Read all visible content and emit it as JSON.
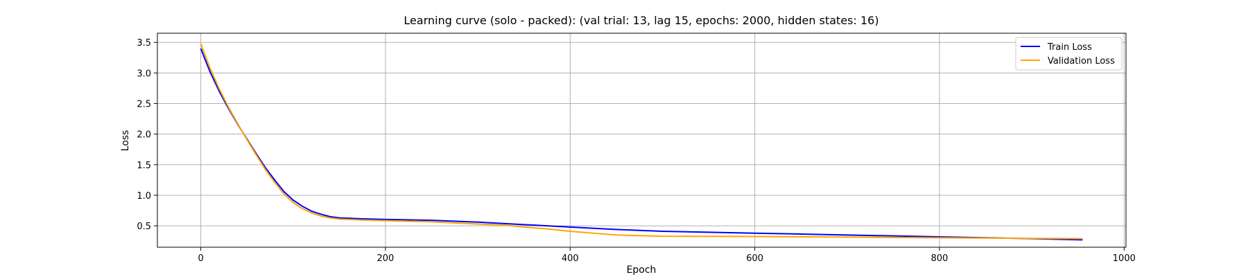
{
  "chart_data": {
    "type": "line",
    "title": "Learning curve (solo - packed): (val trial: 13, lag 15, epochs: 2000, hidden states: 16)",
    "xlabel": "Epoch",
    "ylabel": "Loss",
    "xlim": [
      -47,
      1002
    ],
    "ylim": [
      0.15,
      3.65
    ],
    "xticks": [
      0,
      200,
      400,
      600,
      800,
      1000
    ],
    "yticks": [
      0.5,
      1.0,
      1.5,
      2.0,
      2.5,
      3.0,
      3.5
    ],
    "xtick_labels": [
      "0",
      "200",
      "400",
      "600",
      "800",
      "1000"
    ],
    "ytick_labels": [
      "0.5",
      "1.0",
      "1.5",
      "2.0",
      "2.5",
      "3.0",
      "3.5"
    ],
    "grid": true,
    "legend_position": "top-right",
    "series": [
      {
        "name": "Train Loss",
        "color": "#0000ff",
        "x": [
          0,
          10,
          20,
          30,
          40,
          50,
          60,
          70,
          80,
          90,
          100,
          110,
          120,
          130,
          140,
          150,
          175,
          200,
          250,
          300,
          350,
          400,
          450,
          500,
          600,
          700,
          800,
          900,
          955
        ],
        "y": [
          3.4,
          3.02,
          2.7,
          2.42,
          2.16,
          1.92,
          1.68,
          1.45,
          1.25,
          1.06,
          0.92,
          0.82,
          0.74,
          0.69,
          0.65,
          0.63,
          0.615,
          0.605,
          0.59,
          0.56,
          0.52,
          0.48,
          0.44,
          0.41,
          0.38,
          0.35,
          0.32,
          0.29,
          0.27
        ]
      },
      {
        "name": "Validation Loss",
        "color": "#ffa500",
        "x": [
          0,
          10,
          20,
          30,
          40,
          50,
          60,
          70,
          80,
          90,
          100,
          110,
          120,
          130,
          140,
          150,
          175,
          200,
          250,
          300,
          330,
          350,
          375,
          400,
          425,
          450,
          500,
          600,
          700,
          800,
          900,
          955
        ],
        "y": [
          3.48,
          3.08,
          2.74,
          2.44,
          2.17,
          1.91,
          1.66,
          1.42,
          1.21,
          1.02,
          0.88,
          0.78,
          0.71,
          0.66,
          0.63,
          0.61,
          0.595,
          0.585,
          0.565,
          0.53,
          0.51,
          0.48,
          0.45,
          0.41,
          0.38,
          0.35,
          0.33,
          0.325,
          0.315,
          0.305,
          0.295,
          0.29
        ]
      }
    ]
  }
}
